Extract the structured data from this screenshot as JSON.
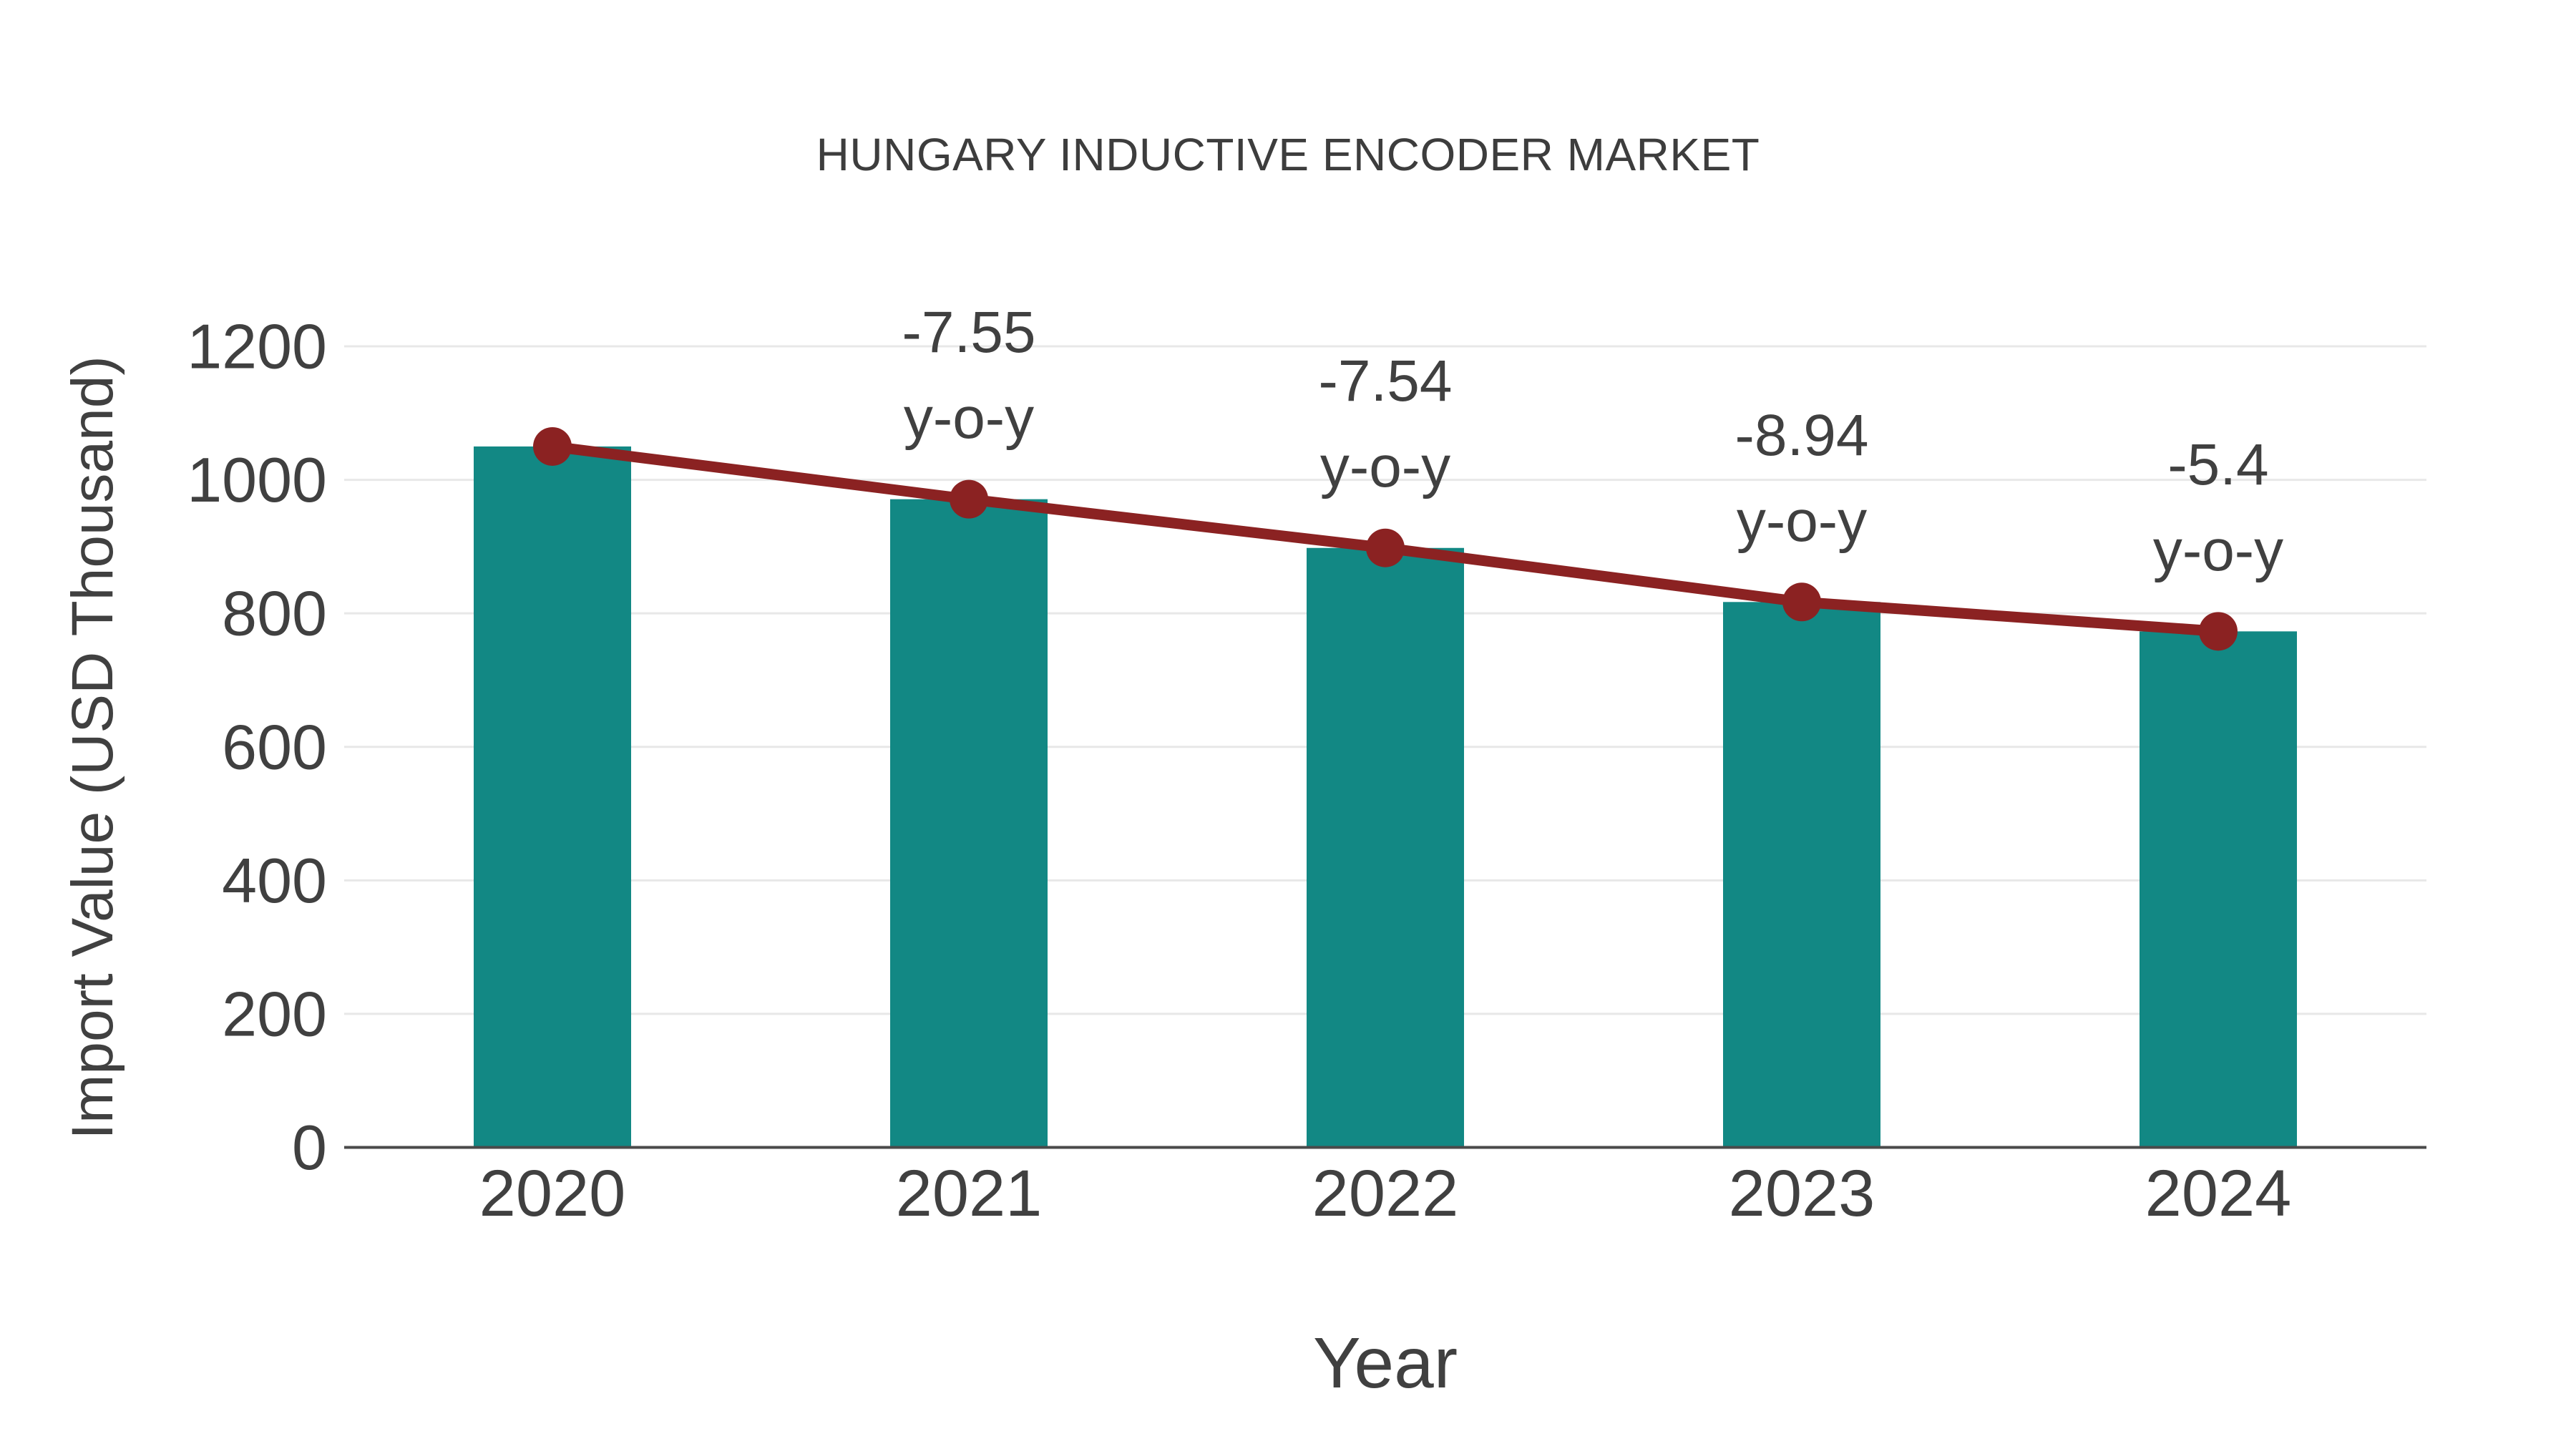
{
  "colors": {
    "bar": "#128884",
    "line": "#8B2222",
    "grid": "#e8e8e8",
    "axis": "#4a4a4a",
    "text": "#404040",
    "title_text": "#3d3d3d",
    "background": "#ffffff"
  },
  "chart_data": {
    "type": "bar",
    "title": "HUNGARY INDUCTIVE ENCODER MARKET",
    "xlabel": "Year",
    "ylabel": "Import Value (USD Thousand)",
    "categories": [
      2020,
      2021,
      2022,
      2023,
      2024
    ],
    "series": [
      {
        "name": "Import Value (USD Thousand)",
        "type": "bar",
        "values": [
          1050,
          971,
          898,
          817,
          773
        ]
      },
      {
        "name": "Year-over-year trend line",
        "type": "line",
        "values": [
          1050,
          971,
          898,
          817,
          773
        ]
      }
    ],
    "annotations": [
      {
        "year": 2021,
        "value": "-7.55",
        "label": "y-o-y"
      },
      {
        "year": 2022,
        "value": "-7.54",
        "label": "y-o-y"
      },
      {
        "year": 2023,
        "value": "-8.94",
        "label": "y-o-y"
      },
      {
        "year": 2024,
        "value": "-5.4",
        "label": "y-o-y"
      }
    ],
    "ylim": [
      0,
      1200
    ],
    "yticks": [
      0,
      200,
      400,
      600,
      800,
      1000,
      1200
    ],
    "grid": true,
    "legend": false
  }
}
